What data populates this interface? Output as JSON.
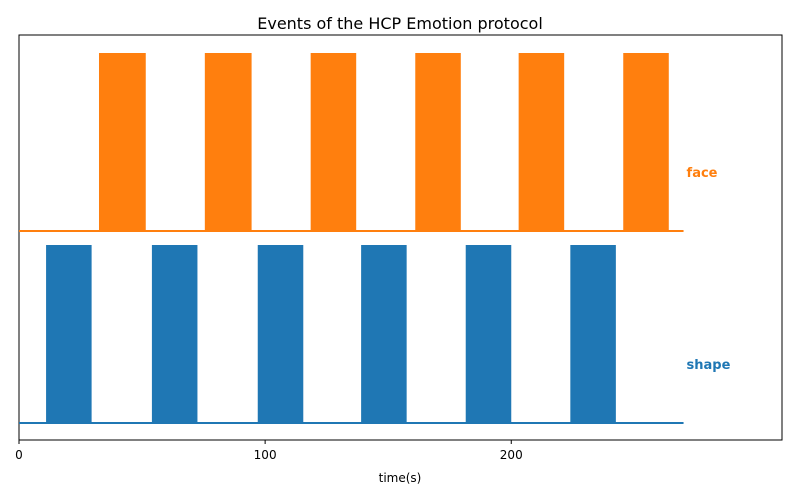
{
  "chart_data": {
    "type": "bar",
    "title": "Events of the HCP Emotion protocol",
    "xlabel": "time(s)",
    "ylabel": "",
    "xlim": [
      0,
      310
    ],
    "xticks": [
      0,
      100,
      200
    ],
    "xtick_labels": [
      "0",
      "100",
      "200"
    ],
    "baseline_end": 270,
    "grid": false,
    "series": [
      {
        "name": "face",
        "color": "#ff7f0e",
        "events": [
          {
            "onset": 32.5,
            "offset": 51.5
          },
          {
            "onset": 75.5,
            "offset": 94.5
          },
          {
            "onset": 118.5,
            "offset": 137
          },
          {
            "onset": 161,
            "offset": 179.5
          },
          {
            "onset": 203,
            "offset": 221.5
          },
          {
            "onset": 245.5,
            "offset": 264
          }
        ]
      },
      {
        "name": "shape",
        "color": "#1f77b4",
        "events": [
          {
            "onset": 11,
            "offset": 29.5
          },
          {
            "onset": 54,
            "offset": 72.5
          },
          {
            "onset": 97,
            "offset": 115.5
          },
          {
            "onset": 139,
            "offset": 157.5
          },
          {
            "onset": 181.5,
            "offset": 200
          },
          {
            "onset": 224,
            "offset": 242.5
          }
        ]
      }
    ]
  }
}
